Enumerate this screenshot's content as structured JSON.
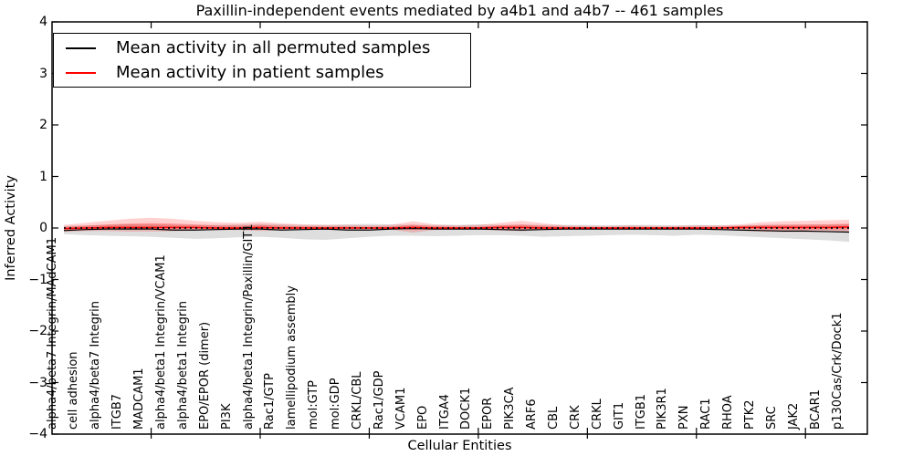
{
  "title": "Paxillin-independent events mediated by a4b1 and a4b7 -- 461 samples",
  "axes": {
    "xlabel": "Cellular Entities",
    "ylabel": "Inferred Activity",
    "ytick_labels": [
      "4",
      "3",
      "2",
      "1",
      "0",
      "−1",
      "−2",
      "−3",
      "−4"
    ],
    "ytick_values": [
      4,
      3,
      2,
      1,
      0,
      -1,
      -2,
      -3,
      -4
    ]
  },
  "legend": {
    "position": "upper left",
    "items": [
      {
        "label": "Mean activity in all permuted samples",
        "color": "#000000"
      },
      {
        "label": "Mean activity in patient samples",
        "color": "#ff0000"
      }
    ]
  },
  "chart_data": {
    "type": "line",
    "title": "Paxillin-independent events mediated by a4b1 and a4b7 -- 461 samples",
    "xlabel": "Cellular Entities",
    "ylabel": "Inferred Activity",
    "ylim": [
      -4,
      4
    ],
    "grid": false,
    "legend_position": "upper left",
    "zero_line": {
      "style": "dotted",
      "color": "#000000",
      "y": 0
    },
    "x_major_tick_indices": [
      4,
      9,
      14,
      19,
      24,
      29,
      34
    ],
    "categories": [
      "alpha4/beta7 Integrin/MAdCAM1",
      "cell adhesion",
      "alpha4/beta7 Integrin",
      "ITGB7",
      "MADCAM1",
      "alpha4/beta1 Integrin/VCAM1",
      "alpha4/beta1 Integrin",
      "EPO/EPOR (dimer)",
      "PI3K",
      "alpha4/beta1 Integrin/Paxillin/GIT1",
      "Rac1/GTP",
      "lamellipodium assembly",
      "mol:GTP",
      "mol:GDP",
      "CRKL/CBL",
      "Rac1/GDP",
      "VCAM1",
      "EPO",
      "ITGA4",
      "DOCK1",
      "EPOR",
      "PIK3CA",
      "ARF6",
      "CBL",
      "CRK",
      "CRKL",
      "GIT1",
      "ITGB1",
      "PIK3R1",
      "PXN",
      "RAC1",
      "RHOA",
      "PTK2",
      "SRC",
      "JAK2",
      "BCAR1",
      "p130Cas/Crk/Dock1"
    ],
    "series": [
      {
        "name": "Mean activity in all permuted samples",
        "color": "#000000",
        "line_width": 1.2,
        "values": [
          -0.05,
          -0.03,
          -0.02,
          -0.02,
          -0.02,
          -0.04,
          -0.04,
          -0.03,
          -0.02,
          -0.02,
          -0.04,
          -0.03,
          -0.02,
          -0.04,
          -0.04,
          -0.02,
          -0.01,
          -0.02,
          -0.02,
          -0.02,
          -0.03,
          -0.04,
          -0.03,
          -0.02,
          -0.02,
          -0.02,
          -0.02,
          -0.02,
          -0.02,
          -0.02,
          -0.03,
          -0.04,
          -0.05,
          -0.06,
          -0.06,
          -0.07,
          -0.08
        ]
      },
      {
        "name": "Mean activity in patient samples",
        "color": "#ff0000",
        "line_width": 1.5,
        "values": [
          -0.01,
          0.0,
          0.01,
          0.01,
          0.01,
          0.01,
          0.01,
          0.0,
          0.0,
          0.01,
          0.0,
          0.0,
          0.0,
          0.0,
          0.0,
          0.0,
          0.01,
          0.0,
          0.0,
          0.0,
          0.01,
          0.01,
          0.0,
          0.0,
          0.0,
          0.0,
          0.0,
          0.0,
          0.0,
          0.0,
          0.0,
          0.01,
          0.01,
          0.01,
          0.01,
          0.01,
          0.02
        ]
      }
    ],
    "bands": [
      {
        "name": "permuted-samples-range",
        "series": "Mean activity in all permuted samples",
        "color": "rgba(0,0,0,0.13)",
        "upper": [
          0.04,
          0.05,
          0.06,
          0.07,
          0.07,
          0.06,
          0.06,
          0.06,
          0.07,
          0.08,
          0.07,
          0.06,
          0.06,
          0.07,
          0.08,
          0.07,
          0.06,
          0.06,
          0.06,
          0.07,
          0.06,
          0.06,
          0.06,
          0.06,
          0.06,
          0.05,
          0.06,
          0.06,
          0.05,
          0.06,
          0.05,
          0.05,
          0.06,
          0.06,
          0.06,
          0.06,
          0.07
        ],
        "lower": [
          -0.12,
          -0.14,
          -0.15,
          -0.16,
          -0.17,
          -0.19,
          -0.21,
          -0.2,
          -0.18,
          -0.17,
          -0.19,
          -0.22,
          -0.23,
          -0.2,
          -0.17,
          -0.15,
          -0.15,
          -0.16,
          -0.15,
          -0.14,
          -0.14,
          -0.15,
          -0.17,
          -0.16,
          -0.15,
          -0.14,
          -0.13,
          -0.14,
          -0.15,
          -0.13,
          -0.14,
          -0.16,
          -0.18,
          -0.2,
          -0.22,
          -0.24,
          -0.27
        ]
      },
      {
        "name": "patient-samples-range",
        "series": "Mean activity in patient samples",
        "color": "rgba(255,0,0,0.18)",
        "inner_color": "rgba(255,0,0,0.28)",
        "inner_scale": 0.45,
        "upper": [
          0.06,
          0.1,
          0.14,
          0.18,
          0.2,
          0.18,
          0.14,
          0.11,
          0.1,
          0.12,
          0.09,
          0.07,
          0.06,
          0.06,
          0.05,
          0.06,
          0.13,
          0.07,
          0.05,
          0.06,
          0.1,
          0.14,
          0.09,
          0.05,
          0.04,
          0.04,
          0.05,
          0.04,
          0.04,
          0.05,
          0.05,
          0.07,
          0.11,
          0.13,
          0.14,
          0.15,
          0.16
        ],
        "lower": [
          -0.07,
          -0.06,
          -0.06,
          -0.07,
          -0.07,
          -0.06,
          -0.05,
          -0.04,
          -0.04,
          -0.06,
          -0.04,
          -0.03,
          -0.03,
          -0.03,
          -0.03,
          -0.03,
          -0.09,
          -0.04,
          -0.03,
          -0.03,
          -0.05,
          -0.06,
          -0.04,
          -0.03,
          -0.03,
          -0.03,
          -0.03,
          -0.03,
          -0.03,
          -0.03,
          -0.03,
          -0.05,
          -0.07,
          -0.08,
          -0.08,
          -0.08,
          -0.09
        ]
      }
    ]
  }
}
